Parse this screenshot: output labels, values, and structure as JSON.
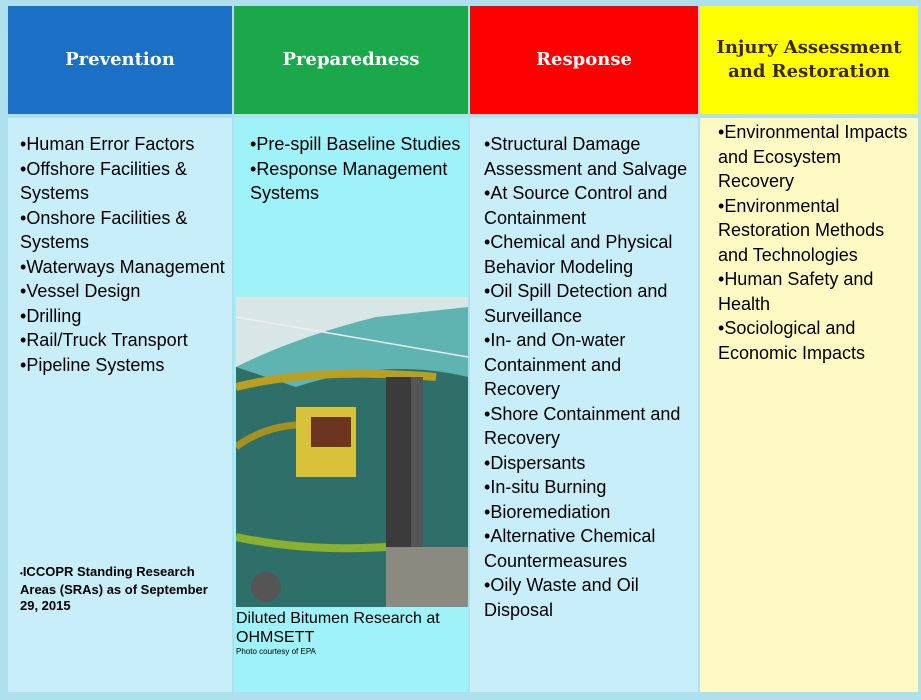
{
  "columns": [
    {
      "header": "Prevention",
      "items": [
        "Human Error Factors",
        "Offshore Facilities & Systems",
        "Onshore Facilities & Systems",
        "Waterways Management",
        "Vessel Design",
        "Drilling",
        "Rail/Truck Transport",
        "Pipeline Systems"
      ]
    },
    {
      "header": "Preparedness",
      "items": [
        "Pre-spill Baseline Studies",
        "Response Management Systems"
      ]
    },
    {
      "header": "Response",
      "items": [
        "Structural Damage Assessment and Salvage",
        "At Source Control and Containment",
        "Chemical and Physical Behavior Modeling",
        "Oil Spill Detection and Surveillance",
        "In- and On-water Containment and Recovery",
        "Shore Containment and Recovery",
        "Dispersants",
        "In-situ Burning",
        "Bioremediation",
        "Alternative Chemical Countermeasures",
        "Oily Waste and Oil Disposal"
      ]
    },
    {
      "header": "Injury Assessment and Restoration",
      "items": [
        "Environmental Impacts and Ecosystem Recovery",
        "Environmental Restoration Methods and Technologies",
        "Human Safety and Health",
        "Sociological and Economic Impacts"
      ]
    }
  ],
  "note": "ICCOPR Standing Research Areas (SRAs) as of September 29, 2015",
  "photo": {
    "caption": "Diluted Bitumen Research at OHMSETT",
    "credit": "Photo courtesy of EPA"
  }
}
